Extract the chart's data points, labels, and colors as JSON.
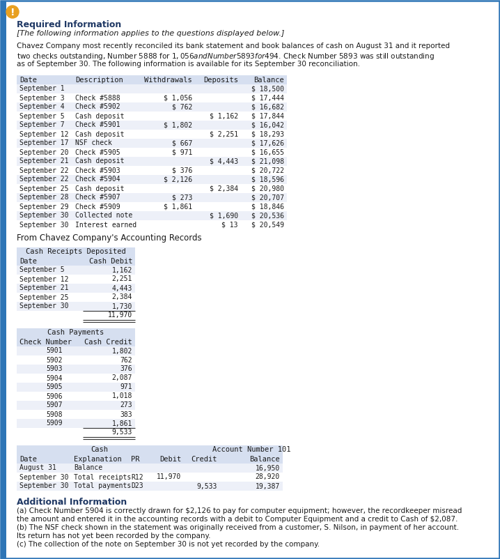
{
  "bg_color": "#ffffff",
  "border_color": "#2e75b6",
  "header_bg": "#d6dff0",
  "table_alt_bg": "#edf0f8",
  "title_color": "#1f3864",
  "text_color": "#1a1a1a",
  "required_info_title": "Required Information",
  "italic_line": "[The following information applies to the questions displayed below.]",
  "para_lines": [
    "Chavez Company most recently reconciled its bank statement and book balances of cash on August 31 and it reported",
    "two checks outstanding, Number 5888 for $1,056 and Number 5893 for $494. Check Number 5893 was still outstanding",
    "as of September 30. The following information is available for its September 30 reconciliation."
  ],
  "bank_headers": [
    "Date",
    "Description",
    "Withdrawals",
    "Deposits",
    "Balance"
  ],
  "bank_rows": [
    [
      "September 1",
      "",
      "",
      "",
      "$ 18,500"
    ],
    [
      "September 3",
      "Check #5888",
      "$ 1,056",
      "",
      "$ 17,444"
    ],
    [
      "September 4",
      "Check #5902",
      "$ 762",
      "",
      "$ 16,682"
    ],
    [
      "September 5",
      "Cash deposit",
      "",
      "$ 1,162",
      "$ 17,844"
    ],
    [
      "September 7",
      "Check #5901",
      "$ 1,802",
      "",
      "$ 16,042"
    ],
    [
      "September 12",
      "Cash deposit",
      "",
      "$ 2,251",
      "$ 18,293"
    ],
    [
      "September 17",
      "NSF check",
      "$ 667",
      "",
      "$ 17,626"
    ],
    [
      "September 20",
      "Check #5905",
      "$ 971",
      "",
      "$ 16,655"
    ],
    [
      "September 21",
      "Cash deposit",
      "",
      "$ 4,443",
      "$ 21,098"
    ],
    [
      "September 22",
      "Check #5903",
      "$ 376",
      "",
      "$ 20,722"
    ],
    [
      "September 22",
      "Check #5904",
      "$ 2,126",
      "",
      "$ 18,596"
    ],
    [
      "September 25",
      "Cash deposit",
      "",
      "$ 2,384",
      "$ 20,980"
    ],
    [
      "September 28",
      "Check #5907",
      "$ 273",
      "",
      "$ 20,707"
    ],
    [
      "September 29",
      "Check #5909",
      "$ 1,861",
      "",
      "$ 18,846"
    ],
    [
      "September 30",
      "Collected note",
      "",
      "$ 1,690",
      "$ 20,536"
    ],
    [
      "September 30",
      "Interest earned",
      "",
      "$ 13",
      "$ 20,549"
    ]
  ],
  "accounting_title": "From Chavez Company's Accounting Records",
  "receipts_rows": [
    [
      "September 5",
      "1,162"
    ],
    [
      "September 12",
      "2,251"
    ],
    [
      "September 21",
      "4,443"
    ],
    [
      "September 25",
      "2,384"
    ],
    [
      "September 30",
      "1,730"
    ]
  ],
  "receipts_total": "11,970",
  "payments_rows": [
    [
      "5901",
      "1,802"
    ],
    [
      "5902",
      "762"
    ],
    [
      "5903",
      "376"
    ],
    [
      "5904",
      "2,087"
    ],
    [
      "5905",
      "971"
    ],
    [
      "5906",
      "1,018"
    ],
    [
      "5907",
      "273"
    ],
    [
      "5908",
      "383"
    ],
    [
      "5909",
      "1,861"
    ]
  ],
  "payments_total": "9,533",
  "ledger_rows": [
    [
      "August 31",
      "Balance",
      "",
      "",
      "",
      "16,950"
    ],
    [
      "September 30",
      "Total receipts",
      "R12",
      "11,970",
      "",
      "28,920"
    ],
    [
      "September 30",
      "Total payments",
      "D23",
      "",
      "9,533",
      "19,387"
    ]
  ],
  "additional_title": "Additional Information",
  "additional_lines": [
    "(a) Check Number 5904 is correctly drawn for $2,126 to pay for computer equipment; however, the recordkeeper misread",
    "the amount and entered it in the accounting records with a debit to Computer Equipment and a credit to Cash of $2,087.",
    "(b) The NSF check shown in the statement was originally received from a customer, S. Nilson, in payment of her account.",
    "Its return has not yet been recorded by the company.",
    "(c) The collection of the note on September 30 is not yet recorded by the company."
  ]
}
